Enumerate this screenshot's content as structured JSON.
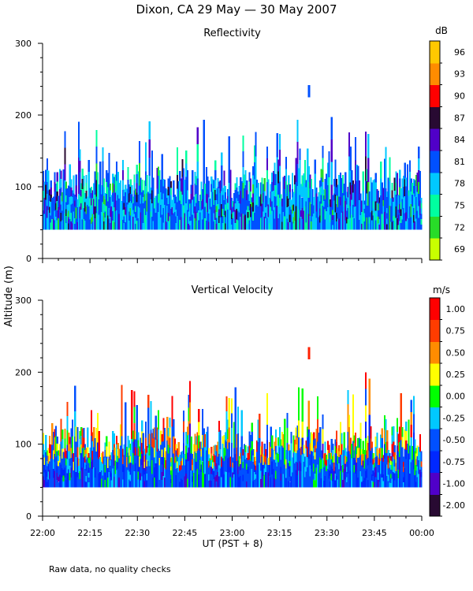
{
  "title": "Dixon, CA 29 May — 30 May 2007",
  "ylabel": "Altitude (m)",
  "xlabel": "UT  (PST + 8)",
  "footnote": "Raw data, no quality checks",
  "x_ticks": [
    "22:00",
    "22:15",
    "22:30",
    "22:45",
    "23:00",
    "23:15",
    "23:30",
    "23:45",
    "00:00"
  ],
  "chart_data": [
    {
      "type": "heatmap",
      "title": "Reflectivity",
      "xlabel": "UT  (PST + 8)",
      "ylabel": "Altitude (m)",
      "xlim_minutes": [
        0,
        120
      ],
      "ylim": [
        0,
        300
      ],
      "y_ticks": [
        0,
        100,
        200,
        300
      ],
      "data_altitude_range_m": [
        40,
        200
      ],
      "colorbar": {
        "unit": "dB",
        "labels": [
          "69",
          "72",
          "75",
          "78",
          "81",
          "84",
          "87",
          "90",
          "93",
          "96"
        ],
        "colors": [
          "#c8ff00",
          "#28dc28",
          "#00ffa0",
          "#00c8ff",
          "#0050ff",
          "#5000c8",
          "#280a32",
          "#ff0000",
          "#ff8c00",
          "#ffc800"
        ]
      },
      "features": [
        {
          "time": "23:24",
          "altitude_range_m": [
            225,
            242
          ],
          "color": "#0050ff"
        }
      ]
    },
    {
      "type": "heatmap",
      "title": "Vertical Velocity",
      "xlabel": "UT  (PST + 8)",
      "ylabel": "Altitude (m)",
      "xlim_minutes": [
        0,
        120
      ],
      "ylim": [
        0,
        300
      ],
      "y_ticks": [
        0,
        100,
        200,
        300
      ],
      "data_altitude_range_m": [
        40,
        200
      ],
      "colorbar": {
        "unit": "m/s",
        "labels": [
          "-2.00",
          "-1.00",
          "-0.75",
          "-0.50",
          "-0.25",
          "0.00",
          "0.25",
          "0.50",
          "0.75",
          "1.00"
        ],
        "colors": [
          "#280a32",
          "#5000c8",
          "#0028ff",
          "#0050ff",
          "#00c8ff",
          "#00ff00",
          "#ffff00",
          "#ff8c00",
          "#ff3c00",
          "#ff0000"
        ]
      },
      "features": [
        {
          "time": "23:24",
          "altitude_range_m": [
            218,
            235
          ],
          "color": "#ff2000"
        }
      ]
    }
  ]
}
